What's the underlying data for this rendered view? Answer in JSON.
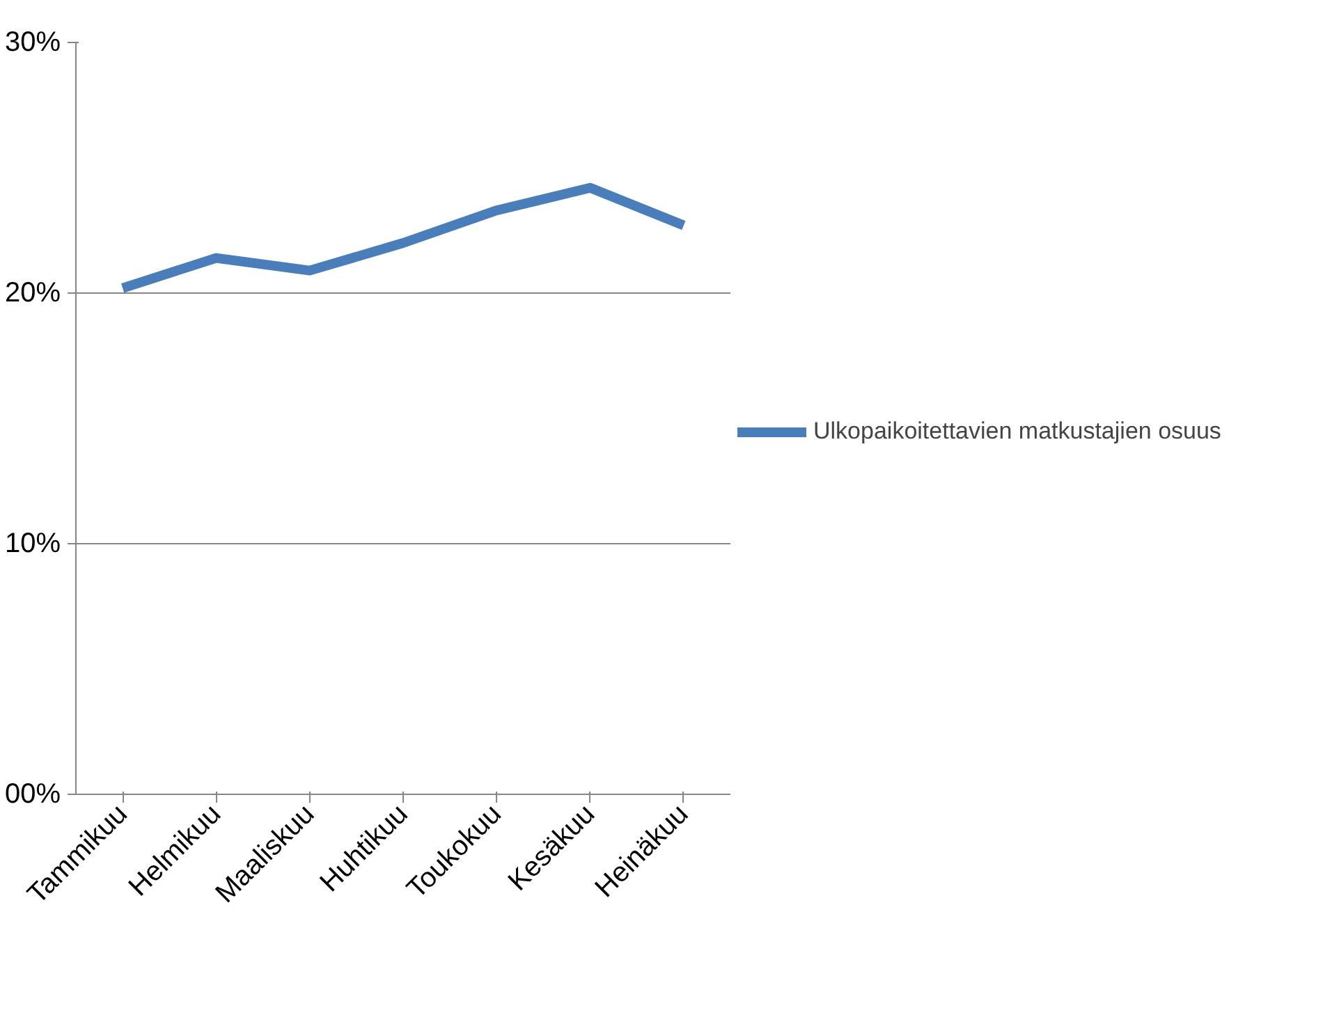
{
  "chart_data": {
    "type": "line",
    "categories": [
      "Tammikuu",
      "Helmikuu",
      "Maaliskuu",
      "Huhtikuu",
      "Toukokuu",
      "Kesäkuu",
      "Heinäkuu"
    ],
    "series": [
      {
        "name": "Ulkopaikoitettavien matkustajien osuus",
        "color": "#4a7ebb",
        "values": [
          20.2,
          21.4,
          20.9,
          22.0,
          23.3,
          24.2,
          22.7
        ]
      }
    ],
    "ylim": [
      0,
      30
    ],
    "yticks": [
      {
        "value": 0,
        "label": "00%"
      },
      {
        "value": 10,
        "label": "10%"
      },
      {
        "value": 20,
        "label": "20%"
      },
      {
        "value": 30,
        "label": "30%"
      }
    ],
    "grid": "y",
    "legend": "right",
    "marker": "none",
    "line_style": "solid"
  }
}
